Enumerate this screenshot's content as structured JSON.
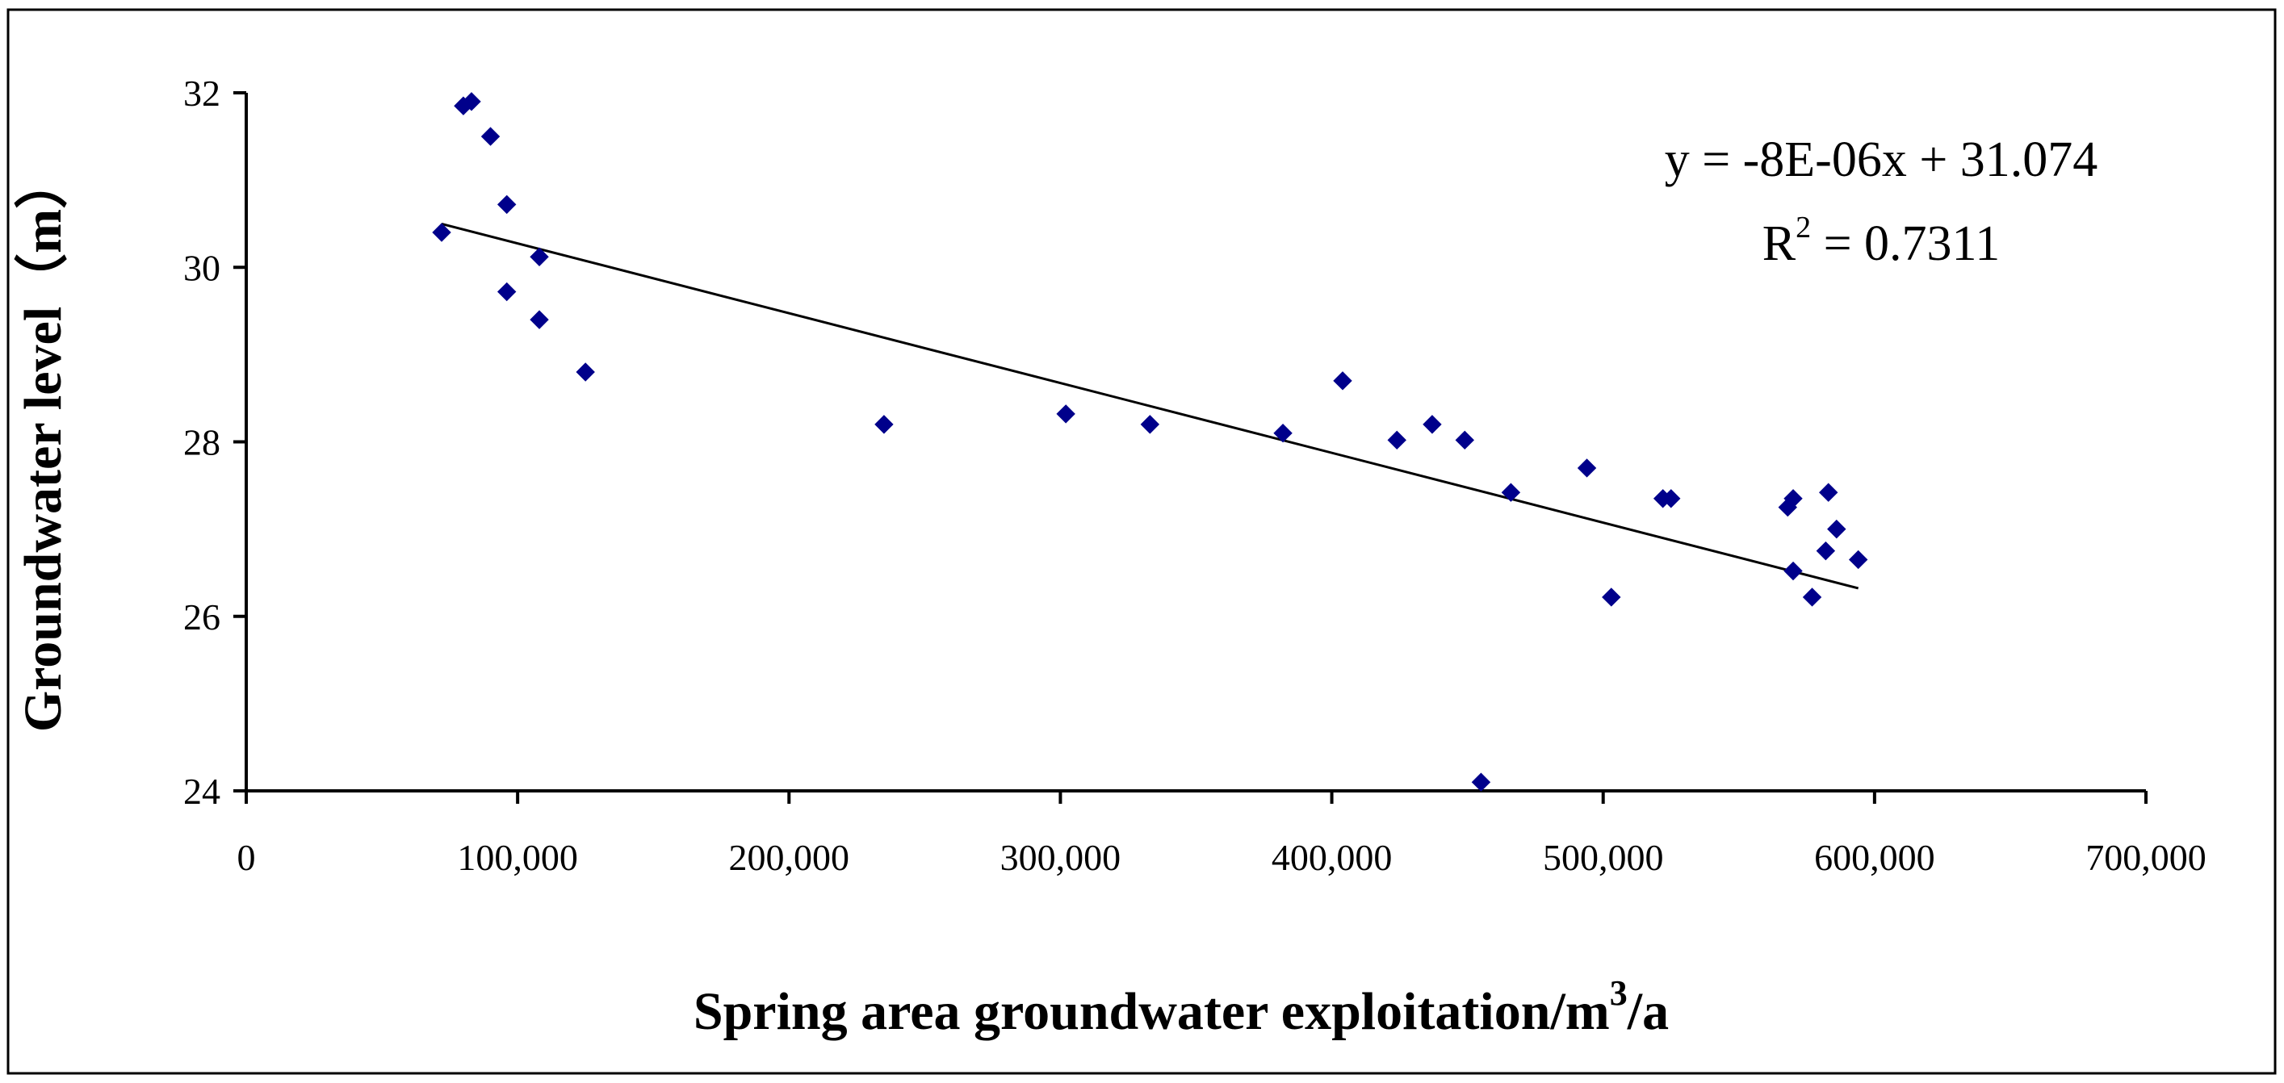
{
  "chart_data": {
    "type": "scatter",
    "xlabel_main": "Spring area groundwater exploitation/m",
    "xlabel_sup": "3",
    "xlabel_tail": "/a",
    "ylabel": "Groundwater level（m）",
    "xlim": [
      0,
      700000
    ],
    "ylim": [
      24,
      32
    ],
    "x_ticks": [
      0,
      100000,
      200000,
      300000,
      400000,
      500000,
      600000,
      700000
    ],
    "x_tick_labels": [
      "0",
      "100,000",
      "200,000",
      "300,000",
      "400,000",
      "500,000",
      "600,000",
      "700,000"
    ],
    "y_ticks": [
      24,
      26,
      28,
      30,
      32
    ],
    "y_tick_labels": [
      "24",
      "26",
      "28",
      "30",
      "32"
    ],
    "grid": false,
    "marker_color": "#00008B",
    "trendline": {
      "slope": -8e-06,
      "intercept": 31.074,
      "x_range": [
        72000,
        594000
      ],
      "equation_label": "y = -8E-06x + 31.074",
      "r2_prefix": "R",
      "r2_sup": "2",
      "r2_tail": " = 0.7311"
    },
    "points": [
      {
        "x": 72000,
        "y": 30.4
      },
      {
        "x": 80000,
        "y": 31.85
      },
      {
        "x": 83000,
        "y": 31.9
      },
      {
        "x": 90000,
        "y": 31.5
      },
      {
        "x": 96000,
        "y": 30.72
      },
      {
        "x": 96000,
        "y": 29.72
      },
      {
        "x": 108000,
        "y": 30.12
      },
      {
        "x": 108000,
        "y": 29.4
      },
      {
        "x": 125000,
        "y": 28.8
      },
      {
        "x": 235000,
        "y": 28.2
      },
      {
        "x": 302000,
        "y": 28.32
      },
      {
        "x": 333000,
        "y": 28.2
      },
      {
        "x": 382000,
        "y": 28.1
      },
      {
        "x": 404000,
        "y": 28.7
      },
      {
        "x": 424000,
        "y": 28.02
      },
      {
        "x": 437000,
        "y": 28.2
      },
      {
        "x": 449000,
        "y": 28.02
      },
      {
        "x": 455000,
        "y": 24.1
      },
      {
        "x": 466000,
        "y": 27.42
      },
      {
        "x": 494000,
        "y": 27.7
      },
      {
        "x": 503000,
        "y": 26.22
      },
      {
        "x": 522000,
        "y": 27.35
      },
      {
        "x": 525000,
        "y": 27.35
      },
      {
        "x": 568000,
        "y": 27.25
      },
      {
        "x": 570000,
        "y": 27.35
      },
      {
        "x": 570000,
        "y": 26.52
      },
      {
        "x": 577000,
        "y": 26.22
      },
      {
        "x": 582000,
        "y": 26.75
      },
      {
        "x": 583000,
        "y": 27.42
      },
      {
        "x": 586000,
        "y": 27.0
      },
      {
        "x": 594000,
        "y": 26.65
      }
    ]
  }
}
